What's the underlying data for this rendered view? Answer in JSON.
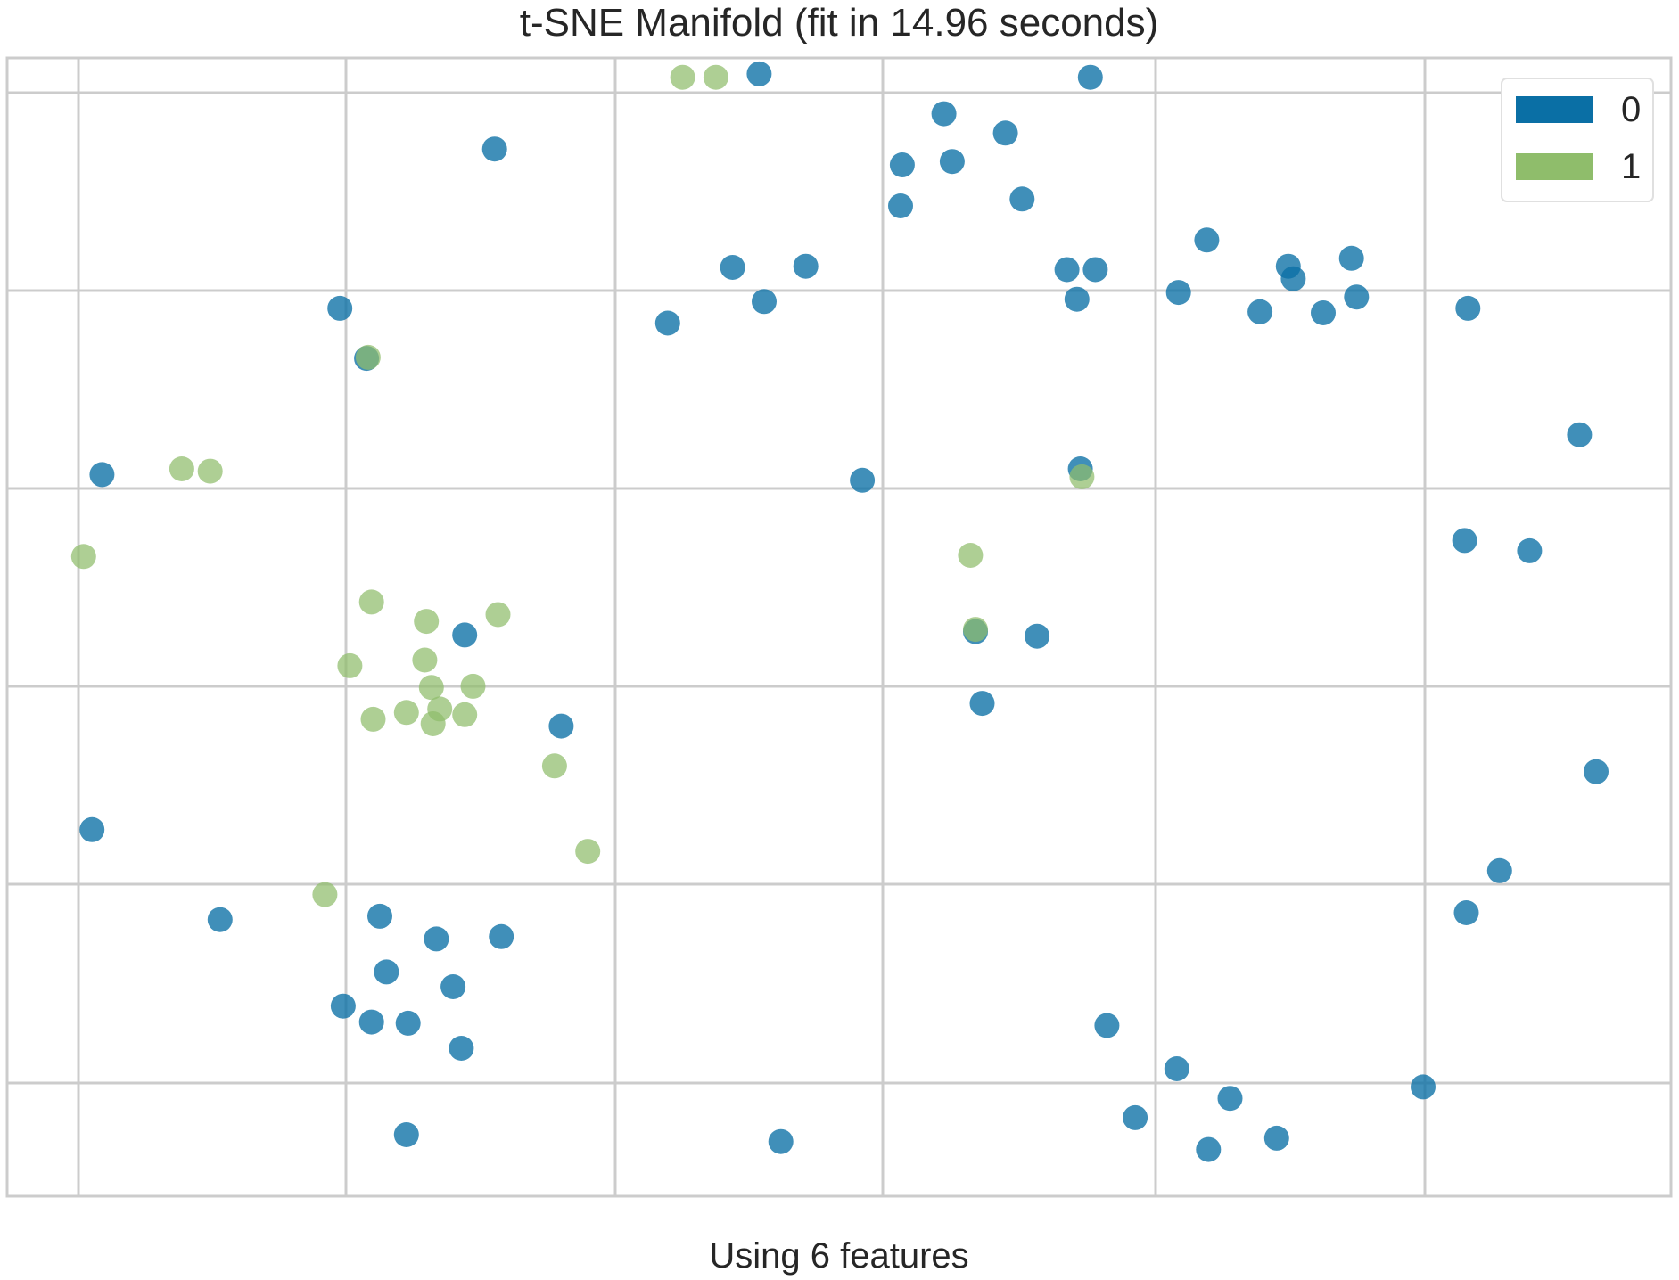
{
  "chart_data": {
    "type": "scatter",
    "title": "t-SNE Manifold (fit in 14.96 seconds)",
    "xlabel": "Using 6 features",
    "ylabel": "",
    "xlim": [
      0,
      100
    ],
    "ylim": [
      0,
      100
    ],
    "grid": true,
    "legend_position": "top-right",
    "series": [
      {
        "name": "0",
        "color": "#0a6fa5",
        "points": [
          [
            45.2,
            98.6
          ],
          [
            65.1,
            98.3
          ],
          [
            29.3,
            92.0
          ],
          [
            56.3,
            95.1
          ],
          [
            60.0,
            93.4
          ],
          [
            53.8,
            90.6
          ],
          [
            56.8,
            90.9
          ],
          [
            61.0,
            87.6
          ],
          [
            53.7,
            87.0
          ],
          [
            72.1,
            84.0
          ],
          [
            77.0,
            81.7
          ],
          [
            80.8,
            82.4
          ],
          [
            77.3,
            80.6
          ],
          [
            81.1,
            79.0
          ],
          [
            43.6,
            81.6
          ],
          [
            48.0,
            81.7
          ],
          [
            45.5,
            78.6
          ],
          [
            63.7,
            81.4
          ],
          [
            65.4,
            81.4
          ],
          [
            64.3,
            78.8
          ],
          [
            70.4,
            79.4
          ],
          [
            75.3,
            77.7
          ],
          [
            79.1,
            77.6
          ],
          [
            87.8,
            78.0
          ],
          [
            20.0,
            78.0
          ],
          [
            39.7,
            76.7
          ],
          [
            21.6,
            73.6
          ],
          [
            94.5,
            66.9
          ],
          [
            5.7,
            63.4
          ],
          [
            51.4,
            62.9
          ],
          [
            64.5,
            63.9
          ],
          [
            87.6,
            57.6
          ],
          [
            91.5,
            56.7
          ],
          [
            27.5,
            49.3
          ],
          [
            58.2,
            49.6
          ],
          [
            61.9,
            49.2
          ],
          [
            58.6,
            43.3
          ],
          [
            33.3,
            41.3
          ],
          [
            95.5,
            37.3
          ],
          [
            5.1,
            32.2
          ],
          [
            89.7,
            28.6
          ],
          [
            12.8,
            24.3
          ],
          [
            87.7,
            24.9
          ],
          [
            25.8,
            22.6
          ],
          [
            29.7,
            22.8
          ],
          [
            22.4,
            24.6
          ],
          [
            22.8,
            19.7
          ],
          [
            26.8,
            18.4
          ],
          [
            20.2,
            16.7
          ],
          [
            21.9,
            15.3
          ],
          [
            24.1,
            15.2
          ],
          [
            27.3,
            13.0
          ],
          [
            66.1,
            15.0
          ],
          [
            70.3,
            11.2
          ],
          [
            73.5,
            8.6
          ],
          [
            85.1,
            9.6
          ],
          [
            24.0,
            5.4
          ],
          [
            46.5,
            4.8
          ],
          [
            67.8,
            6.9
          ],
          [
            72.2,
            4.1
          ],
          [
            76.3,
            5.1
          ]
        ]
      },
      {
        "name": "1",
        "color": "#8fbd6b",
        "points": [
          [
            40.6,
            98.3
          ],
          [
            42.6,
            98.3
          ],
          [
            21.7,
            73.7
          ],
          [
            10.5,
            63.9
          ],
          [
            12.2,
            63.7
          ],
          [
            64.6,
            63.2
          ],
          [
            4.6,
            56.2
          ],
          [
            57.9,
            56.3
          ],
          [
            21.9,
            52.2
          ],
          [
            25.2,
            50.5
          ],
          [
            29.5,
            51.1
          ],
          [
            20.6,
            46.6
          ],
          [
            25.1,
            47.1
          ],
          [
            58.2,
            49.8
          ],
          [
            25.5,
            44.7
          ],
          [
            28.0,
            44.8
          ],
          [
            22.0,
            41.9
          ],
          [
            24.0,
            42.5
          ],
          [
            26.0,
            42.8
          ],
          [
            27.5,
            42.3
          ],
          [
            25.6,
            41.5
          ],
          [
            32.9,
            37.8
          ],
          [
            34.9,
            30.3
          ],
          [
            19.1,
            26.5
          ]
        ]
      }
    ]
  }
}
